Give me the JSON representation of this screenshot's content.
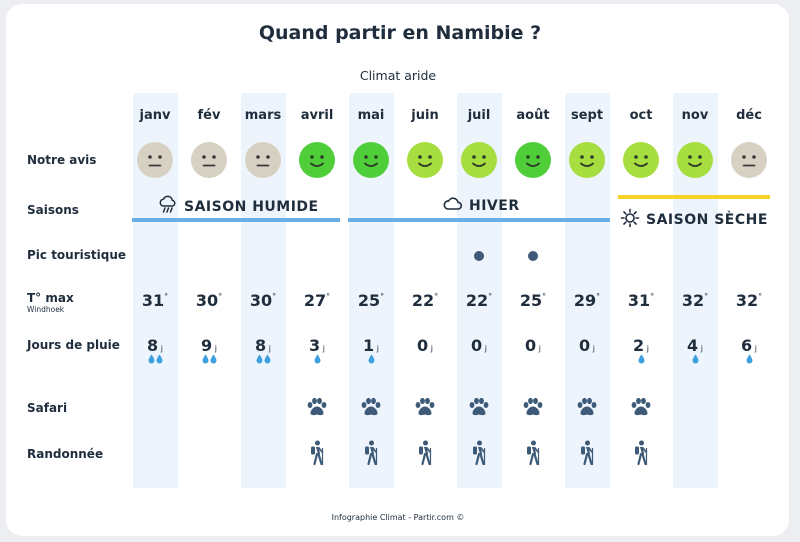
{
  "title": "Quand partir en Namibie ?",
  "subtitle": "Climat aride",
  "months": [
    "janv",
    "fév",
    "mars",
    "avril",
    "mai",
    "juin",
    "juil",
    "août",
    "sept",
    "oct",
    "nov",
    "déc"
  ],
  "row_labels": {
    "opinion": "Notre avis",
    "seasons": "Saisons",
    "peak": "Pic touristique",
    "tmax": "T° max",
    "tmax_sub": "Windhoek",
    "rain": "Jours de pluie",
    "safari": "Safari",
    "hike": "Randonnée"
  },
  "opinion_levels": [
    "neutral",
    "neutral",
    "neutral",
    "excellent",
    "excellent",
    "good",
    "good",
    "excellent",
    "good",
    "good",
    "good",
    "neutral"
  ],
  "colors": {
    "neutral": "#d6d1c2",
    "good": "#a6dd3f",
    "excellent": "#4fce3a",
    "wet_bar": "#6aaee8",
    "winter_bar": "#6aaee8",
    "dry_bar": "#f5d327",
    "column_bg": "#eef4fc",
    "text": "#1f2d3d",
    "icon": "#3d5a78",
    "drop": "#3fa0e0"
  },
  "seasons": [
    {
      "label": "SAISON HUMIDE",
      "icon": "rain-cloud-icon"
    },
    {
      "label": "HIVER",
      "icon": "cloud-icon"
    },
    {
      "label": "SAISON SÈCHE",
      "icon": "sun-icon"
    }
  ],
  "peak": [
    false,
    false,
    false,
    false,
    false,
    false,
    true,
    true,
    false,
    false,
    false,
    false
  ],
  "temps": [
    "31",
    "30",
    "30",
    "27",
    "25",
    "22",
    "22",
    "25",
    "29",
    "31",
    "32",
    "32"
  ],
  "temp_unit": "°",
  "rain_days": [
    "8",
    "9",
    "8",
    "3",
    "1",
    "0",
    "0",
    "0",
    "0",
    "2",
    "4",
    "6"
  ],
  "rain_unit": "j",
  "rain_drops": [
    2,
    2,
    2,
    1,
    1,
    0,
    0,
    0,
    0,
    1,
    1,
    1
  ],
  "safari": [
    false,
    false,
    false,
    true,
    true,
    true,
    true,
    true,
    true,
    true,
    false,
    false
  ],
  "hike": [
    false,
    false,
    false,
    true,
    true,
    true,
    true,
    true,
    true,
    true,
    false,
    false
  ],
  "footer": "Infographie Climat - Partir.com ©"
}
